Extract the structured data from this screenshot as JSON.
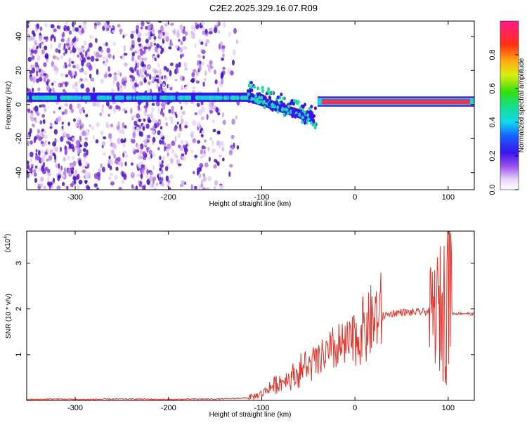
{
  "title": "C2E2.2025.329.16.07.R09",
  "spectrogram": {
    "xlabel": "Height of straight line (km)",
    "ylabel": "Frequency (Hz)",
    "xlim": [
      -352,
      128
    ],
    "ylim": [
      -50,
      49
    ],
    "xticks": [
      "-300",
      "-200",
      "-100",
      "0",
      "100"
    ],
    "xtick_values": [
      -300,
      -200,
      -100,
      0,
      100
    ],
    "yticks": [
      "-40",
      "-20",
      "0",
      "20",
      "40"
    ],
    "ytick_values": [
      -40,
      -20,
      0,
      20,
      40
    ],
    "colorbar": {
      "label": "Normalized spectral amplitude",
      "ticks": [
        "0.0",
        "0.2",
        "0.4",
        "0.6",
        "0.8"
      ],
      "tick_values": [
        0.0,
        0.2,
        0.4,
        0.6,
        0.8
      ],
      "range": [
        0,
        1
      ]
    }
  },
  "chart_data": {
    "type": "line",
    "title": "C2E2.2025.329.16.07.R09",
    "xlabel": "Height of straight line (km)",
    "ylabel": "SNR (10 * v/v)",
    "scale_label": "(x10",
    "scale_exp": "4",
    "scale_close": ")",
    "xlim": [
      -352,
      128
    ],
    "ylim": [
      0,
      3.7
    ],
    "xticks": [
      "-300",
      "-200",
      "-100",
      "0",
      "100"
    ],
    "xtick_values": [
      -300,
      -200,
      -100,
      0,
      100
    ],
    "yticks": [
      "1",
      "2",
      "3"
    ],
    "ytick_values": [
      1,
      2,
      3
    ],
    "series": [
      {
        "name": "SNR",
        "color": "#e8322a",
        "x": [
          -352,
          -320,
          -290,
          -260,
          -230,
          -200,
          -170,
          -150,
          -130,
          -115,
          -105,
          -100,
          -95,
          -90,
          -85,
          -80,
          -75,
          -70,
          -65,
          -60,
          -55,
          -50,
          -45,
          -40,
          -35,
          -30,
          -25,
          -20,
          -15,
          -10,
          -5,
          0,
          5,
          10,
          15,
          20,
          30,
          40,
          50,
          60,
          70,
          80,
          90,
          95,
          98,
          100,
          102,
          105,
          110,
          120,
          128
        ],
        "y": [
          0.02,
          0.03,
          0.02,
          0.03,
          0.03,
          0.02,
          0.03,
          0.03,
          0.04,
          0.06,
          0.1,
          0.15,
          0.22,
          0.3,
          0.35,
          0.4,
          0.45,
          0.5,
          0.55,
          0.62,
          0.7,
          0.75,
          0.8,
          0.85,
          0.95,
          1.0,
          1.05,
          1.1,
          1.15,
          1.2,
          1.25,
          1.35,
          1.45,
          1.55,
          1.65,
          1.75,
          1.85,
          1.9,
          1.93,
          1.92,
          1.93,
          1.95,
          1.95,
          2.0,
          2.1,
          2.2,
          1.95,
          1.9,
          1.9,
          1.9,
          1.88
        ]
      }
    ],
    "colors": {
      "line": "#e8322a",
      "cool_band": "#3a1ee8",
      "warm_band": "#e81a3a",
      "mid_band": "#12e0c8"
    }
  }
}
